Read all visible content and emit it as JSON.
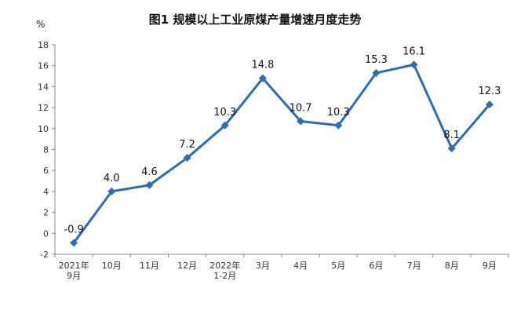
{
  "chart_data": {
    "type": "line",
    "title": "图1  规模以上工业原煤产量增速月度走势",
    "ylabel": "%",
    "xlabel": "",
    "ylim": [
      -2,
      18
    ],
    "yticks": [
      -2,
      0,
      2,
      4,
      6,
      8,
      10,
      12,
      14,
      16,
      18
    ],
    "categories": [
      [
        "2021年",
        "9月"
      ],
      [
        "10月"
      ],
      [
        "11月"
      ],
      [
        "12月"
      ],
      [
        "2022年",
        "1-2月"
      ],
      [
        "3月"
      ],
      [
        "4月"
      ],
      [
        "5月"
      ],
      [
        "6月"
      ],
      [
        "7月"
      ],
      [
        "8月"
      ],
      [
        "9月"
      ]
    ],
    "series": [
      {
        "values": [
          -0.9,
          4.0,
          4.6,
          7.2,
          10.3,
          14.8,
          10.7,
          10.3,
          15.3,
          16.1,
          8.1,
          12.3
        ],
        "labels": [
          "-0.9",
          "4.0",
          "4.6",
          "7.2",
          "10.3",
          "14.8",
          "10.7",
          "10.3",
          "15.3",
          "16.1",
          "8.1",
          "12.3"
        ],
        "color": "#2e6db4"
      }
    ],
    "grid": false
  }
}
